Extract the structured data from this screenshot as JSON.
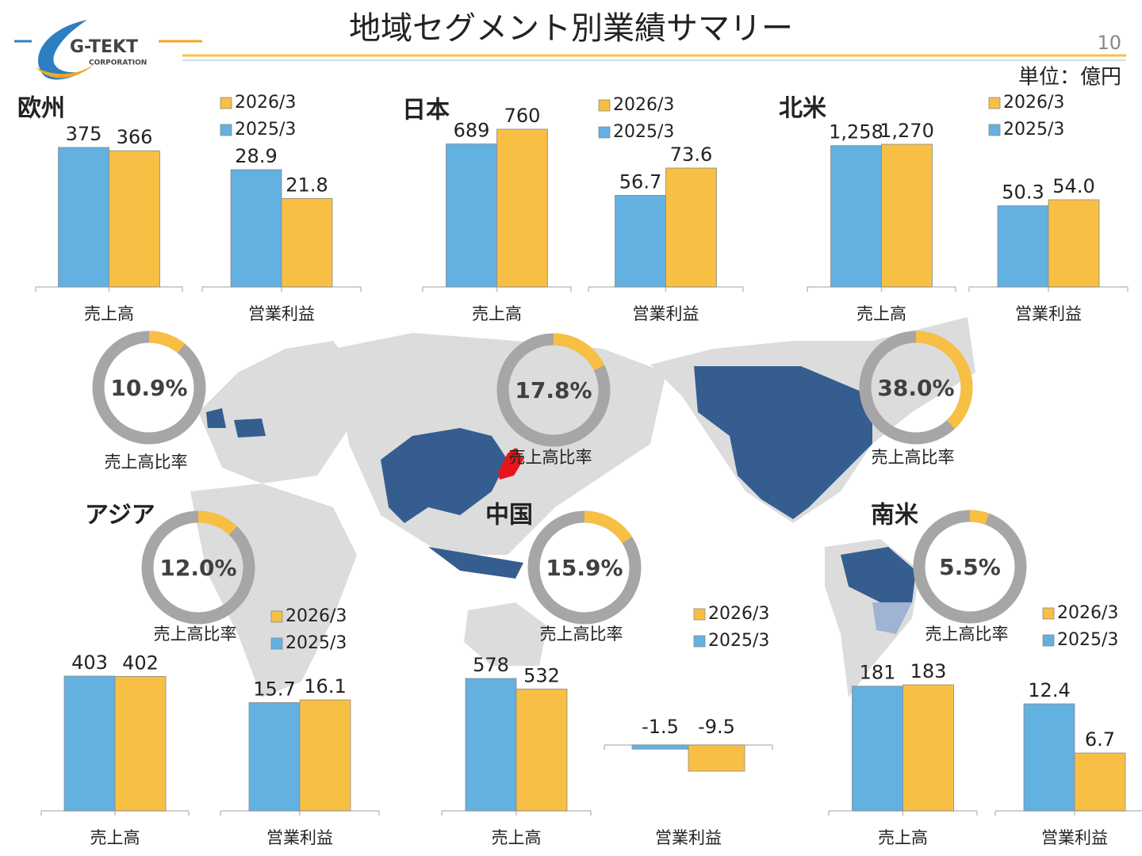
{
  "header": {
    "title": "地域セグメント別業績サマリー",
    "page": "10",
    "unit": "単位：億円",
    "logo": "G-TEKT",
    "logo_sub": "CORPORATION"
  },
  "chart_data": [
    {
      "type": "bar",
      "title": "欧州",
      "categories": [
        "売上高"
      ],
      "series": [
        {
          "color": "#62b1e0",
          "values": [
            375
          ]
        },
        {
          "color": "#f8bf45",
          "values": [
            366
          ]
        }
      ]
    },
    {
      "type": "bar",
      "categories": [
        "営業利益"
      ],
      "legend": true,
      "series": [
        {
          "name": "2025/3",
          "color": "#62b1e0",
          "values": [
            28.9
          ]
        },
        {
          "name": "2026/3",
          "color": "#f8bf45",
          "values": [
            21.8
          ]
        }
      ]
    },
    {
      "type": "pie",
      "title": "売上高比率",
      "values": [
        10.9
      ],
      "value_labels": [
        "10.9%"
      ],
      "colors": [
        "#f8bf45"
      ],
      "ring_color": "#a6a6a6"
    },
    {
      "type": "bar",
      "title": "日本",
      "categories": [
        "売上高"
      ],
      "series": [
        {
          "color": "#62b1e0",
          "values": [
            689
          ]
        },
        {
          "color": "#f8bf45",
          "values": [
            760
          ]
        }
      ]
    },
    {
      "type": "bar",
      "categories": [
        "営業利益"
      ],
      "legend": true,
      "series": [
        {
          "name": "2025/3",
          "color": "#62b1e0",
          "values": [
            56.7
          ]
        },
        {
          "name": "2026/3",
          "color": "#f8bf45",
          "values": [
            73.6
          ]
        }
      ]
    },
    {
      "type": "pie",
      "title": "売上高比率",
      "values": [
        17.8
      ],
      "value_labels": [
        "17.8%"
      ],
      "colors": [
        "#f8bf45"
      ],
      "ring_color": "#a6a6a6"
    },
    {
      "type": "bar",
      "title": "北米",
      "categories": [
        "売上高"
      ],
      "series": [
        {
          "color": "#62b1e0",
          "values": [
            1258
          ],
          "value_labels": [
            "1,258"
          ]
        },
        {
          "color": "#f8bf45",
          "values": [
            1270
          ],
          "value_labels": [
            "1,270"
          ]
        }
      ]
    },
    {
      "type": "bar",
      "categories": [
        "営業利益"
      ],
      "legend": true,
      "series": [
        {
          "name": "2025/3",
          "color": "#62b1e0",
          "values": [
            50.3
          ]
        },
        {
          "name": "2026/3",
          "color": "#f8bf45",
          "values": [
            54
          ],
          "value_labels": [
            "54.0"
          ]
        }
      ]
    },
    {
      "type": "pie",
      "title": "売上高比率",
      "values": [
        38
      ],
      "value_labels": [
        "38.0%"
      ],
      "colors": [
        "#f8bf45"
      ],
      "ring_color": "#a6a6a6"
    },
    {
      "type": "bar",
      "title": "アジア",
      "categories": [
        "売上高"
      ],
      "series": [
        {
          "color": "#62b1e0",
          "values": [
            403
          ]
        },
        {
          "color": "#f8bf45",
          "values": [
            402
          ]
        }
      ]
    },
    {
      "type": "bar",
      "categories": [
        "営業利益"
      ],
      "legend": true,
      "series": [
        {
          "name": "2025/3",
          "color": "#62b1e0",
          "values": [
            15.7
          ]
        },
        {
          "name": "2026/3",
          "color": "#f8bf45",
          "values": [
            16.1
          ]
        }
      ]
    },
    {
      "type": "pie",
      "title": "売上高比率",
      "values": [
        12
      ],
      "value_labels": [
        "12.0%"
      ],
      "colors": [
        "#f8bf45"
      ],
      "ring_color": "#a6a6a6"
    },
    {
      "type": "bar",
      "title": "中国",
      "categories": [
        "売上高"
      ],
      "series": [
        {
          "color": "#62b1e0",
          "values": [
            578
          ]
        },
        {
          "color": "#f8bf45",
          "values": [
            532
          ]
        }
      ]
    },
    {
      "type": "bar",
      "categories": [
        "営業利益"
      ],
      "legend": true,
      "series": [
        {
          "name": "2025/3",
          "color": "#62b1e0",
          "values": [
            -1.5
          ]
        },
        {
          "name": "2026/3",
          "color": "#f8bf45",
          "values": [
            -9.5
          ]
        }
      ]
    },
    {
      "type": "pie",
      "title": "売上高比率",
      "values": [
        15.9
      ],
      "value_labels": [
        "15.9%"
      ],
      "colors": [
        "#f8bf45"
      ],
      "ring_color": "#a6a6a6"
    },
    {
      "type": "bar",
      "title": "南米",
      "categories": [
        "売上高"
      ],
      "series": [
        {
          "color": "#62b1e0",
          "values": [
            181
          ]
        },
        {
          "color": "#f8bf45",
          "values": [
            183
          ]
        }
      ]
    },
    {
      "type": "bar",
      "categories": [
        "営業利益"
      ],
      "legend": true,
      "series": [
        {
          "name": "2025/3",
          "color": "#62b1e0",
          "values": [
            12.4
          ]
        },
        {
          "name": "2026/3",
          "color": "#f8bf45",
          "values": [
            6.7
          ]
        }
      ]
    },
    {
      "type": "pie",
      "title": "売上高比率",
      "values": [
        5.5
      ],
      "value_labels": [
        "5.5%"
      ],
      "colors": [
        "#f8bf45"
      ],
      "ring_color": "#a6a6a6"
    }
  ]
}
